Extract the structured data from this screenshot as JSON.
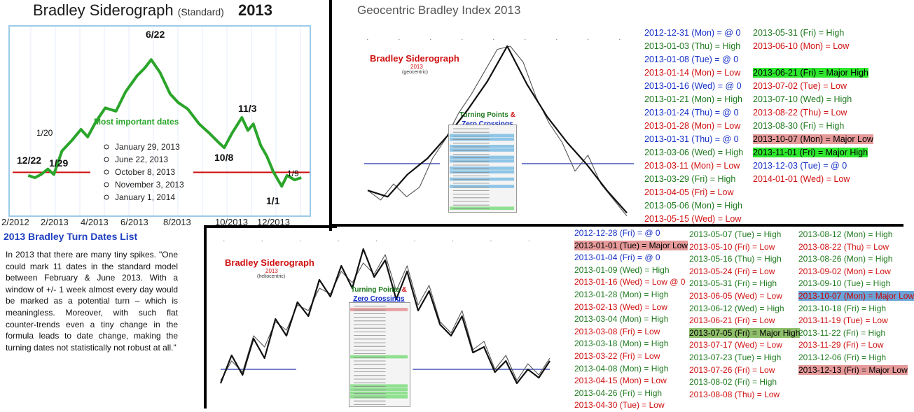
{
  "left": {
    "title_main": "Bradley Siderograph",
    "title_sub": "(Standard)",
    "title_year": "2013",
    "note_title": "Most important dates",
    "important_dates": [
      "January 29, 2013",
      "June 22, 2013",
      "October 8, 2013",
      "November 3, 2013",
      "January 1, 2014"
    ],
    "turn_title": "2013 Bradley Turn Dates List",
    "paragraph": "In 2013 that there are many  tiny spikes. \"One could mark 11 dates in the standard model between February & June 2013. With a window of +/- 1 week almost every day would be marked as a potential turn  – which is meaningless.  Moreover,  with such flat counter-trends even a tiny  change in the formula leads to date change, making the turning dates not statistically not robust at all.\""
  },
  "chart_data": [
    {
      "type": "line",
      "title": "Bradley Siderograph (Standard) 2013",
      "x_ticks": [
        "2/2012",
        "2/2013",
        "4/2013",
        "6/2013",
        "8/2013",
        "10/2013",
        "12/2013"
      ],
      "annotations": [
        "12/22",
        "1/20",
        "1/29",
        "6/22",
        "11/3",
        "10/8",
        "1/9",
        "1/1"
      ],
      "series": [
        {
          "name": "",
          "color": "#2aa52a",
          "x": [
            "2012-12-22",
            "2013-01-01",
            "2013-01-10",
            "2013-01-20",
            "2013-01-29",
            "2013-02-10",
            "2013-02-25",
            "2013-03-10",
            "2013-03-20",
            "2013-04-01",
            "2013-04-15",
            "2013-05-01",
            "2013-05-15",
            "2013-06-01",
            "2013-06-12",
            "2013-06-22",
            "2013-07-05",
            "2013-07-20",
            "2013-08-01",
            "2013-08-15",
            "2013-09-01",
            "2013-09-15",
            "2013-10-01",
            "2013-10-08",
            "2013-10-20",
            "2013-11-03",
            "2013-11-12",
            "2013-11-20",
            "2013-12-01",
            "2013-12-10",
            "2013-12-20",
            "2014-01-01",
            "2014-01-09",
            "2014-01-20",
            "2014-01-30"
          ],
          "y": [
            32,
            30,
            33,
            38,
            33,
            55,
            65,
            75,
            68,
            82,
            95,
            92,
            110,
            125,
            132,
            140,
            128,
            108,
            100,
            94,
            80,
            72,
            62,
            58,
            72,
            86,
            74,
            80,
            60,
            50,
            35,
            22,
            32,
            28,
            30
          ]
        }
      ],
      "reference_line": {
        "y": 35,
        "color": "#d01010"
      }
    },
    {
      "type": "line",
      "title": "Geocentric Bradley Index 2013",
      "inset_title": "Bradley Siderograph",
      "inset_year": "2013",
      "inset_subtitle": "(geocentric)",
      "legend_title_a": "Turning Points",
      "legend_title_b": "Zero Crossings",
      "series": [
        {
          "name": "",
          "color": "#555555",
          "y": [
            10,
            4,
            14,
            6,
            12,
            30,
            42,
            58,
            70,
            84,
            98,
            100,
            90,
            68,
            52,
            40,
            22,
            32,
            14,
            4,
            -6
          ]
        },
        {
          "name": "",
          "color": "#111111",
          "y": [
            10,
            6,
            20,
            30,
            44,
            60,
            78,
            100,
            76,
            56,
            40,
            26,
            10,
            -4
          ]
        }
      ]
    },
    {
      "type": "line",
      "title": "",
      "inset_title": "Bradley Siderograph",
      "inset_year": "2013",
      "inset_subtitle": "(heliocentric)",
      "legend_title_a": "Turning Points",
      "legend_title_b": "Zero Crossings",
      "series": [
        {
          "name": "",
          "color": "#555555",
          "y": [
            6,
            20,
            12,
            38,
            30,
            48,
            42,
            60,
            56,
            72,
            68,
            84,
            76,
            90,
            82,
            96,
            70,
            88,
            60,
            74,
            48,
            40,
            56,
            28,
            34,
            14,
            24,
            6,
            18,
            10,
            22
          ]
        },
        {
          "name": "",
          "color": "#111111",
          "y": [
            4,
            24,
            10,
            36,
            22,
            50,
            38,
            62,
            52,
            78,
            66,
            88,
            72,
            100,
            80,
            92,
            64,
            84,
            56,
            70,
            46,
            38,
            52,
            26,
            30,
            12,
            20,
            4,
            14,
            8,
            20
          ]
        }
      ]
    }
  ],
  "geo_list_col1": [
    {
      "text": "2012-12-31 (Mon) = @ 0",
      "c": "c-blue"
    },
    {
      "text": "2013-01-03 (Thu) = High",
      "c": "c-green"
    },
    {
      "text": "2013-01-08 (Tue) = @ 0",
      "c": "c-blue"
    },
    {
      "text": "2013-01-14 (Mon) = Low",
      "c": "c-red"
    },
    {
      "text": "2013-01-16 (Wed) = @ 0",
      "c": "c-blue"
    },
    {
      "text": "2013-01-21 (Mon) = High",
      "c": "c-green"
    },
    {
      "text": "2013-01-24 (Thu) = @ 0",
      "c": "c-blue"
    },
    {
      "text": "2013-01-28 (Mon) = Low",
      "c": "c-red"
    },
    {
      "text": "2013-01-31 (Thu) = @ 0",
      "c": "c-blue"
    },
    {
      "text": "2013-03-06 (Wed) = High",
      "c": "c-green"
    },
    {
      "text": "2013-03-11 (Mon) = Low",
      "c": "c-red"
    },
    {
      "text": "2013-03-29 (Fri) = High",
      "c": "c-green"
    },
    {
      "text": "2013-04-05 (Fri) = Low",
      "c": "c-red"
    },
    {
      "text": "2013-05-06 (Mon) = High",
      "c": "c-green"
    },
    {
      "text": "2013-05-15 (Wed) = Low",
      "c": "c-red"
    }
  ],
  "geo_list_col2": [
    {
      "text": "2013-05-31 (Fri) = High",
      "c": "c-green"
    },
    {
      "text": "2013-06-10 (Mon) = Low",
      "c": "c-red"
    },
    {
      "text": "",
      "c": ""
    },
    {
      "text": "2013-06-21 (Fri) = Major High",
      "c": "bg-green"
    },
    {
      "text": "2013-07-02 (Tue) = Low",
      "c": "c-red"
    },
    {
      "text": "2013-07-10 (Wed) = High",
      "c": "c-green"
    },
    {
      "text": "2013-08-22 (Thu) = Low",
      "c": "c-red"
    },
    {
      "text": "2013-08-30 (Fri) = High",
      "c": "c-green"
    },
    {
      "text": "2013-10-07 (Mon) = Major Low",
      "c": "bg-pink"
    },
    {
      "text": "2013-11-01 (Fri) = Major High",
      "c": "bg-green"
    },
    {
      "text": "2013-12-03 (Tue) = @ 0",
      "c": "c-blue"
    },
    {
      "text": "2014-01-01 (Wed) = Low",
      "c": "c-red"
    }
  ],
  "helio_list_col1": [
    {
      "text": "2012-12-28 (Fri) = @ 0",
      "c": "c-blue"
    },
    {
      "text": "2013-01-01 (Tue) = Major Low",
      "c": "bg-pink"
    },
    {
      "text": "2013-01-04 (Fri) = @ 0",
      "c": "c-blue"
    },
    {
      "text": "2013-01-09 (Wed) = High",
      "c": "c-green"
    },
    {
      "text": "2013-01-16 (Wed) = Low @ 0",
      "c": "c-red"
    },
    {
      "text": "2013-01-28 (Mon) = High",
      "c": "c-green"
    },
    {
      "text": "2013-02-13 (Wed) = Low",
      "c": "c-red"
    },
    {
      "text": "2013-03-04 (Mon) = High",
      "c": "c-green"
    },
    {
      "text": "2013-03-08 (Fri) = Low",
      "c": "c-red"
    },
    {
      "text": "2013-03-18 (Mon) = High",
      "c": "c-green"
    },
    {
      "text": "2013-03-22 (Fri) = Low",
      "c": "c-red"
    },
    {
      "text": "2013-04-08 (Mon) = High",
      "c": "c-green"
    },
    {
      "text": "2013-04-15 (Mon) = Low",
      "c": "c-red"
    },
    {
      "text": "2013-04-26 (Fri) = High",
      "c": "c-green"
    },
    {
      "text": "2013-04-30 (Tue) = Low",
      "c": "c-red"
    }
  ],
  "helio_list_col2": [
    {
      "text": "2013-05-07 (Tue) = High",
      "c": "c-green"
    },
    {
      "text": "2013-05-10 (Fri) = Low",
      "c": "c-red"
    },
    {
      "text": "2013-05-16 (Thu) = High",
      "c": "c-green"
    },
    {
      "text": "2013-05-24 (Fri) = Low",
      "c": "c-red"
    },
    {
      "text": "2013-05-31 (Fri) = High",
      "c": "c-green"
    },
    {
      "text": "2013-06-05 (Wed) = Low",
      "c": "c-red"
    },
    {
      "text": "2013-06-12 (Wed) = High",
      "c": "c-green"
    },
    {
      "text": "2013-06-21 (Fri) = Low",
      "c": "c-red"
    },
    {
      "text": "2013-07-05 (Fri) = Major High",
      "c": "bg-dkgreen"
    },
    {
      "text": "2013-07-17 (Wed) = Low",
      "c": "c-red"
    },
    {
      "text": "2013-07-23 (Tue) = High",
      "c": "c-green"
    },
    {
      "text": "2013-07-26 (Fri) = Low",
      "c": "c-red"
    },
    {
      "text": "2013-08-02 (Fri) = High",
      "c": "c-green"
    },
    {
      "text": "2013-08-08 (Thu) = Low",
      "c": "c-red"
    }
  ],
  "helio_list_col3": [
    {
      "text": "2013-08-12 (Mon) = High",
      "c": "c-green"
    },
    {
      "text": "2013-08-22 (Thu) = Low",
      "c": "c-red"
    },
    {
      "text": "2013-08-26 (Mon) = High",
      "c": "c-green"
    },
    {
      "text": "2013-09-02 (Mon) = Low",
      "c": "c-red"
    },
    {
      "text": "2013-09-10 (Tue) = High",
      "c": "c-green"
    },
    {
      "text": "2013-10-07 (Mon) = Major Low",
      "c": "bg-blue"
    },
    {
      "text": "2013-10-18 (Fri) = High",
      "c": "c-green"
    },
    {
      "text": "2013-11-19 (Tue) = Low",
      "c": "c-red"
    },
    {
      "text": "2013-11-22 (Fri) = High",
      "c": "c-green"
    },
    {
      "text": "2013-11-29 (Fri) = Low",
      "c": "c-red"
    },
    {
      "text": "2013-12-06 (Fri) = High",
      "c": "c-green"
    },
    {
      "text": "2013-12-13 (Fri) = Major Low",
      "c": "bg-pink"
    }
  ]
}
